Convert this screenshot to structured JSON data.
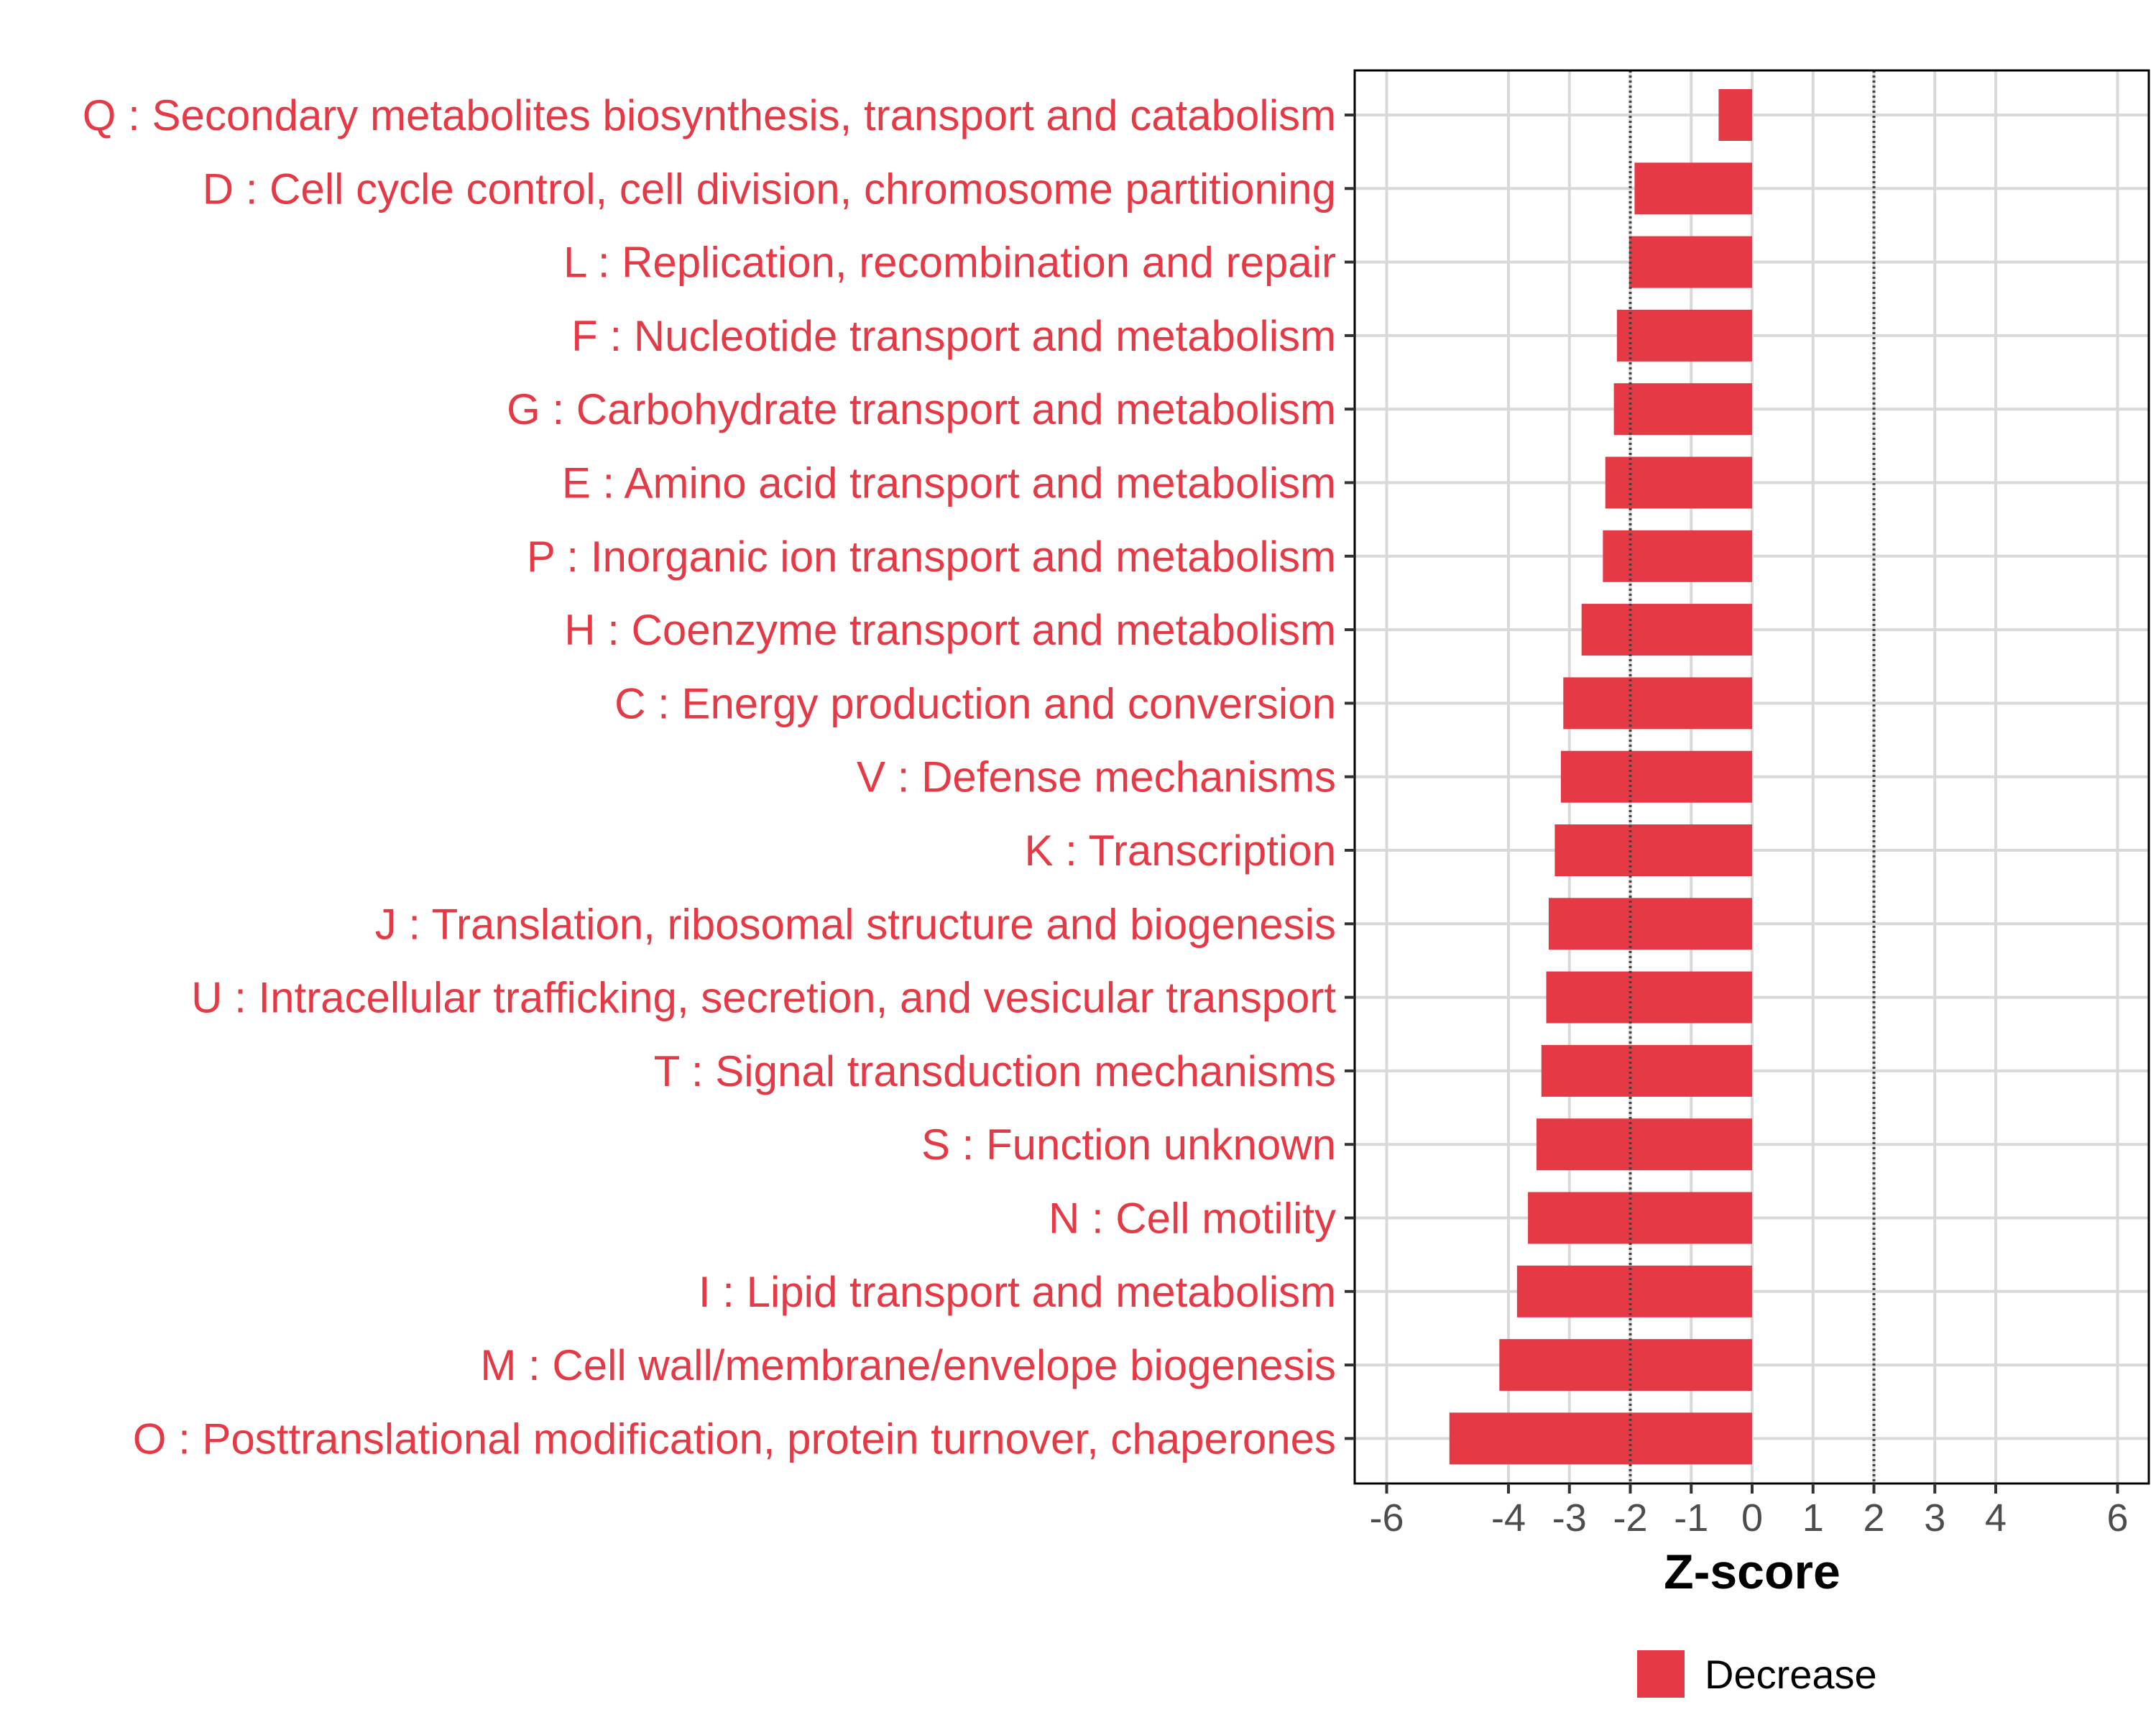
{
  "chart_data": {
    "type": "bar",
    "orientation": "horizontal",
    "title": "",
    "xlabel": "Z-score",
    "ylabel": "",
    "xlim": [
      -6.5,
      6.5
    ],
    "x_ticks": [
      -6,
      -4,
      -3,
      -2,
      -1,
      0,
      1,
      2,
      3,
      4,
      6
    ],
    "x_tick_labels": [
      "-6",
      "-4",
      "-3",
      "-2",
      "-1",
      "0",
      "1",
      "2",
      "3",
      "4",
      "6"
    ],
    "reference_lines": [
      -2,
      2
    ],
    "grid": true,
    "categories": [
      "Q : Secondary metabolites biosynthesis, transport and catabolism",
      "D : Cell cycle control, cell division, chromosome partitioning",
      "L : Replication, recombination and repair",
      "F : Nucleotide transport and metabolism",
      "G : Carbohydrate transport and metabolism",
      "E : Amino acid transport and metabolism",
      "P : Inorganic ion transport and metabolism",
      "H : Coenzyme transport and metabolism",
      "C : Energy production and conversion",
      "V : Defense mechanisms",
      "K : Transcription",
      "J : Translation, ribosomal structure and biogenesis",
      "U : Intracellular trafficking, secretion, and vesicular transport",
      "T : Signal transduction mechanisms",
      "S : Function unknown",
      "N : Cell motility",
      "I : Lipid transport and metabolism",
      "M : Cell wall/membrane/envelope biogenesis",
      "O : Posttranslational modification, protein turnover, chaperones"
    ],
    "series": [
      {
        "name": "Decrease",
        "color": "#e63946",
        "values": [
          -0.55,
          -1.93,
          -2.02,
          -2.22,
          -2.27,
          -2.41,
          -2.45,
          -2.8,
          -3.1,
          -3.14,
          -3.24,
          -3.34,
          -3.38,
          -3.46,
          -3.54,
          -3.68,
          -3.86,
          -4.15,
          -4.97
        ]
      }
    ],
    "legend": {
      "position": "bottom",
      "entries": [
        "Decrease"
      ]
    }
  },
  "colors": {
    "bar": "#e63946",
    "label": "#e63946",
    "grid": "#d9d9d9",
    "frame": "#000000",
    "tick_text": "#4d4d4d"
  }
}
